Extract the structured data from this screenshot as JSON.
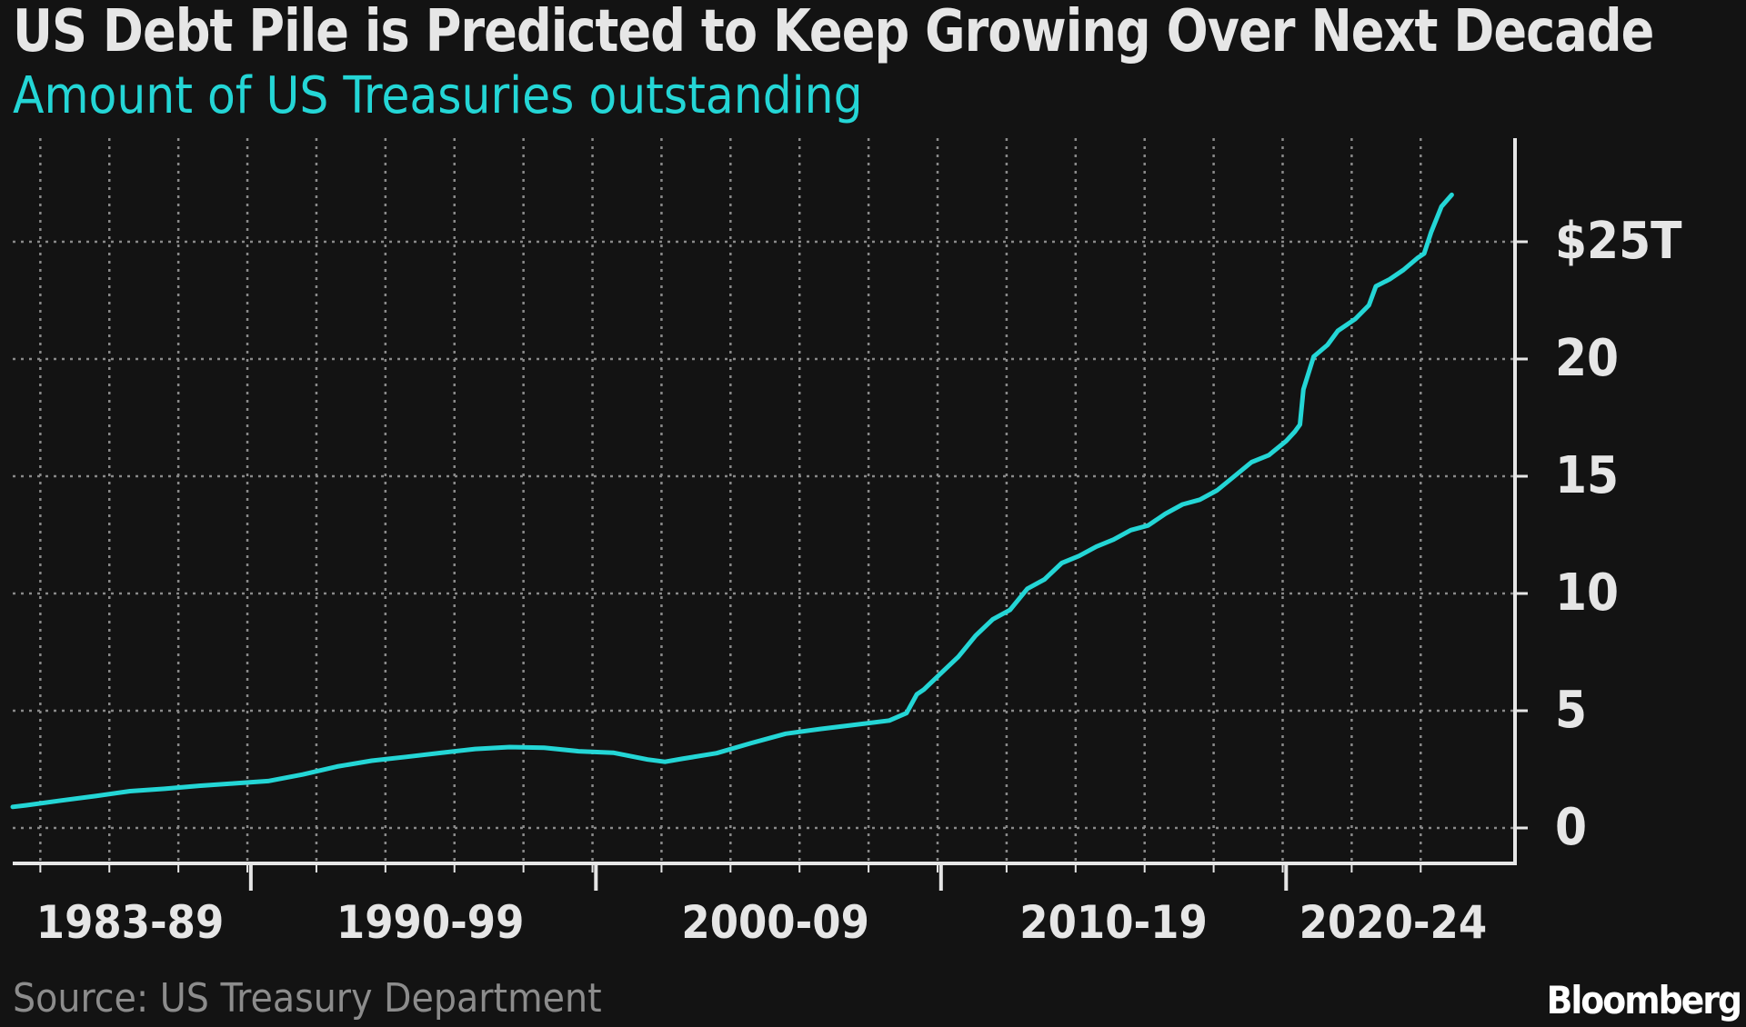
{
  "header": {
    "title": "US Debt Pile is Predicted to Keep Growing Over Next Decade",
    "subtitle": "Amount of US Treasuries outstanding"
  },
  "footer": {
    "source": "Source: US Treasury Department",
    "brand": "Bloomberg"
  },
  "colors": {
    "background": "#131313",
    "line": "#24d6d6",
    "grid": "#8a8a8a",
    "text": "#e6e6e6",
    "source_text": "#8c8c8c"
  },
  "chart_data": {
    "type": "line",
    "title": "US Debt Pile is Predicted to Keep Growing Over Next Decade",
    "subtitle": "Amount of US Treasuries outstanding",
    "xlabel": "",
    "ylabel": "",
    "x_unit": "year",
    "xlim": [
      1982.6,
      2025.0
    ],
    "ylim": [
      -1.5,
      29.5
    ],
    "grid": true,
    "legend": "none",
    "y_axis_side": "right",
    "y_ticks": [
      {
        "value": 0,
        "label": "0"
      },
      {
        "value": 5,
        "label": "5"
      },
      {
        "value": 10,
        "label": "10"
      },
      {
        "value": 15,
        "label": "15"
      },
      {
        "value": 20,
        "label": "20"
      },
      {
        "value": 25,
        "label": "$25T"
      }
    ],
    "x_tick_labels": [
      {
        "label": "1983-89",
        "center": 1986.0
      },
      {
        "label": "1990-99",
        "center": 1994.7
      },
      {
        "label": "2000-09",
        "center": 2004.7
      },
      {
        "label": "2010-19",
        "center": 2014.5
      },
      {
        "label": "2020-24",
        "center": 2022.6
      }
    ],
    "x_major_ticks": [
      1989.5,
      1999.5,
      2009.5,
      2019.5
    ],
    "x_minor_gridlines": [
      1983.4,
      1985.4,
      1987.4,
      1989.4,
      1991.4,
      1993.4,
      1995.4,
      1997.4,
      1999.4,
      2001.4,
      2003.4,
      2005.4,
      2007.4,
      2009.4,
      2011.4,
      2013.4,
      2015.4,
      2017.4,
      2019.4,
      2021.4,
      2023.4
    ],
    "series": [
      {
        "values": [
          [
            1982.6,
            0.9
          ],
          [
            1983.0,
            0.97
          ],
          [
            1984.0,
            1.17
          ],
          [
            1985.0,
            1.36
          ],
          [
            1986.0,
            1.57
          ],
          [
            1987.0,
            1.67
          ],
          [
            1988.0,
            1.8
          ],
          [
            1989.0,
            1.9
          ],
          [
            1990.0,
            2.0
          ],
          [
            1991.0,
            2.28
          ],
          [
            1992.0,
            2.62
          ],
          [
            1993.0,
            2.87
          ],
          [
            1994.0,
            3.03
          ],
          [
            1995.0,
            3.2
          ],
          [
            1996.0,
            3.37
          ],
          [
            1997.0,
            3.45
          ],
          [
            1998.0,
            3.42
          ],
          [
            1999.0,
            3.27
          ],
          [
            2000.0,
            3.21
          ],
          [
            2001.0,
            2.92
          ],
          [
            2001.5,
            2.82
          ],
          [
            2002.0,
            2.95
          ],
          [
            2003.0,
            3.19
          ],
          [
            2004.0,
            3.62
          ],
          [
            2005.0,
            4.02
          ],
          [
            2006.0,
            4.22
          ],
          [
            2007.0,
            4.4
          ],
          [
            2008.0,
            4.58
          ],
          [
            2008.5,
            4.9
          ],
          [
            2008.8,
            5.7
          ],
          [
            2009.0,
            5.9
          ],
          [
            2009.5,
            6.6
          ],
          [
            2010.0,
            7.3
          ],
          [
            2010.5,
            8.2
          ],
          [
            2011.0,
            8.9
          ],
          [
            2011.5,
            9.3
          ],
          [
            2012.0,
            10.2
          ],
          [
            2012.5,
            10.6
          ],
          [
            2013.0,
            11.3
          ],
          [
            2013.5,
            11.6
          ],
          [
            2014.0,
            12.0
          ],
          [
            2014.5,
            12.3
          ],
          [
            2015.0,
            12.7
          ],
          [
            2015.5,
            12.9
          ],
          [
            2016.0,
            13.4
          ],
          [
            2016.5,
            13.8
          ],
          [
            2017.0,
            14.0
          ],
          [
            2017.5,
            14.4
          ],
          [
            2018.0,
            15.0
          ],
          [
            2018.5,
            15.6
          ],
          [
            2019.0,
            15.9
          ],
          [
            2019.5,
            16.5
          ],
          [
            2019.75,
            16.9
          ],
          [
            2019.9,
            17.2
          ],
          [
            2020.0,
            18.7
          ],
          [
            2020.3,
            20.1
          ],
          [
            2020.7,
            20.6
          ],
          [
            2021.0,
            21.2
          ],
          [
            2021.5,
            21.7
          ],
          [
            2021.9,
            22.3
          ],
          [
            2022.1,
            23.1
          ],
          [
            2022.5,
            23.4
          ],
          [
            2022.9,
            23.8
          ],
          [
            2023.3,
            24.3
          ],
          [
            2023.5,
            24.5
          ],
          [
            2023.7,
            25.4
          ],
          [
            2024.0,
            26.5
          ],
          [
            2024.3,
            27.0
          ]
        ]
      }
    ]
  }
}
